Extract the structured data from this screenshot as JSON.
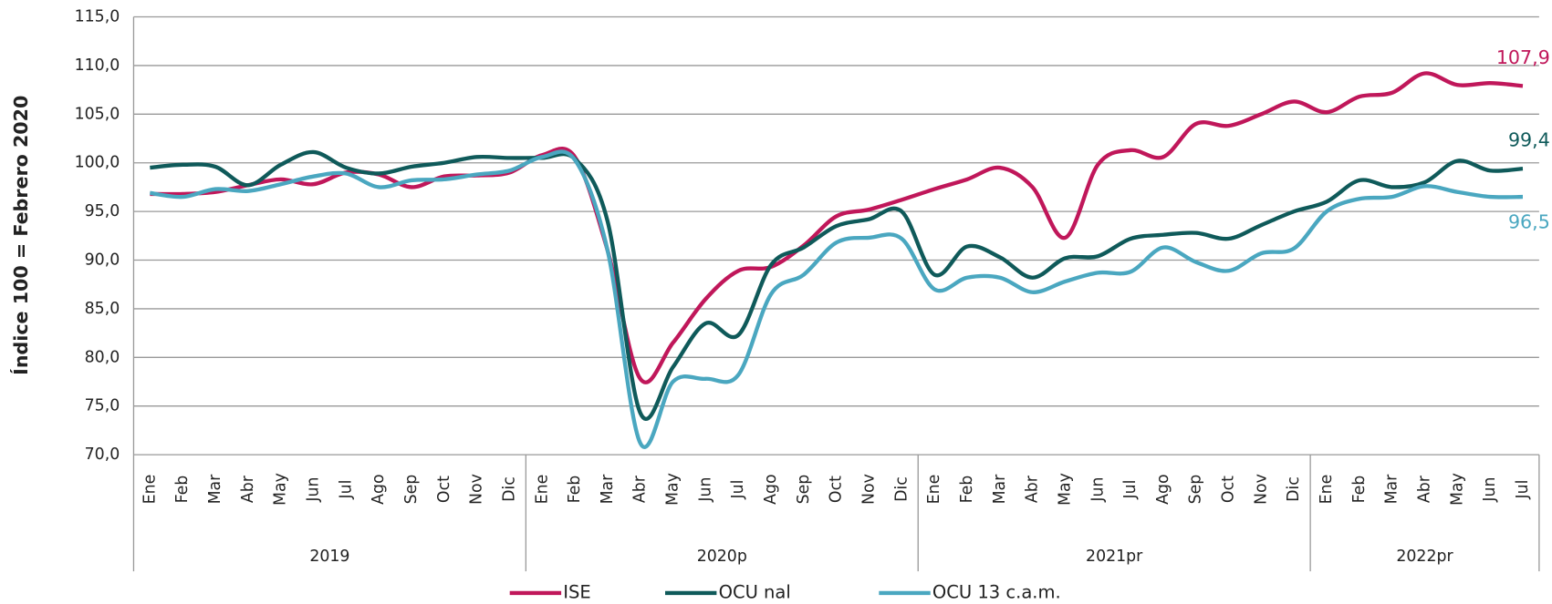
{
  "chart_data": {
    "type": "line",
    "ylabel": "Índice 100 = Febrero 2020",
    "categories": [
      "Ene",
      "Feb",
      "Mar",
      "Abr",
      "May",
      "Jun",
      "Jul",
      "Ago",
      "Sep",
      "Oct",
      "Nov",
      "Dic",
      "Ene",
      "Feb",
      "Mar",
      "Abr",
      "May",
      "Jun",
      "Jul",
      "Ago",
      "Sep",
      "Oct",
      "Nov",
      "Dic",
      "Ene",
      "Feb",
      "Mar",
      "Abr",
      "May",
      "Jun",
      "Jul",
      "Ago",
      "Sep",
      "Oct",
      "Nov",
      "Dic",
      "Ene",
      "Feb",
      "Mar",
      "Abr",
      "May",
      "Jun",
      "Jul"
    ],
    "groups": [
      {
        "label": "2019",
        "count": 12
      },
      {
        "label": "2020p",
        "count": 12
      },
      {
        "label": "2021pr",
        "count": 12
      },
      {
        "label": "2022pr",
        "count": 7
      }
    ],
    "ylim": [
      70,
      115
    ],
    "yticks": [
      {
        "value": 70,
        "label": "70,0"
      },
      {
        "value": 75,
        "label": "75,0"
      },
      {
        "value": 80,
        "label": "80,0"
      },
      {
        "value": 85,
        "label": "85,0"
      },
      {
        "value": 90,
        "label": "90,0"
      },
      {
        "value": 95,
        "label": "95,0"
      },
      {
        "value": 100,
        "label": "100,0"
      },
      {
        "value": 105,
        "label": "105,0"
      },
      {
        "value": 110,
        "label": "110,0"
      },
      {
        "value": 115,
        "label": "115,0"
      }
    ],
    "grid": true,
    "legend": "bottom",
    "series": [
      {
        "name": "ISE",
        "color": "#c0175a",
        "values": [
          96.8,
          96.8,
          97.0,
          97.7,
          98.3,
          97.8,
          99.0,
          98.8,
          97.5,
          98.6,
          98.7,
          99.0,
          100.8,
          100.6,
          91,
          77.8,
          81.5,
          86,
          88.9,
          89.3,
          91.5,
          94.5,
          95.2,
          96.2,
          97.3,
          98.3,
          99.5,
          97.5,
          92.3,
          99.8,
          101.3,
          100.6,
          104.0,
          103.8,
          105.0,
          106.3,
          105.2,
          106.8,
          107.2,
          109.2,
          108.0,
          108.2,
          107.9
        ],
        "value_labels": [
          null,
          null,
          null,
          null,
          null,
          null,
          null,
          null,
          null,
          null,
          null,
          null,
          null,
          null,
          null,
          null,
          null,
          null,
          null,
          null,
          null,
          null,
          null,
          null,
          null,
          null,
          null,
          null,
          null,
          null,
          null,
          null,
          null,
          null,
          null,
          null,
          null,
          null,
          null,
          null,
          null,
          null,
          "107,9"
        ]
      },
      {
        "name": "OCU nal",
        "color": "#0f5a5a",
        "values": [
          99.5,
          99.8,
          99.6,
          97.7,
          99.8,
          101.1,
          99.5,
          98.9,
          99.6,
          100.0,
          100.6,
          100.5,
          100.5,
          100.4,
          94,
          74.3,
          79,
          83.5,
          82.3,
          89.5,
          91.3,
          93.5,
          94.2,
          95.0,
          88.5,
          91.4,
          90.3,
          88.2,
          90.2,
          90.4,
          92.2,
          92.6,
          92.8,
          92.2,
          93.6,
          95.0,
          96.0,
          98.2,
          97.5,
          98.0,
          100.2,
          99.2,
          99.4
        ],
        "value_labels": [
          null,
          null,
          null,
          null,
          null,
          null,
          null,
          null,
          null,
          null,
          null,
          null,
          null,
          null,
          null,
          null,
          null,
          null,
          null,
          null,
          null,
          null,
          null,
          null,
          null,
          null,
          null,
          null,
          null,
          null,
          null,
          null,
          null,
          null,
          null,
          null,
          null,
          null,
          null,
          null,
          null,
          null,
          "99,4"
        ]
      },
      {
        "name": "OCU 13 c.a.m.",
        "color": "#4aa7c0",
        "values": [
          96.9,
          96.5,
          97.3,
          97.1,
          97.8,
          98.6,
          98.9,
          97.5,
          98.2,
          98.3,
          98.8,
          99.2,
          100.6,
          100.3,
          91,
          71.2,
          77.5,
          77.8,
          78.2,
          86.5,
          88.5,
          91.8,
          92.3,
          92.2,
          87,
          88.2,
          88.2,
          86.7,
          87.8,
          88.7,
          88.8,
          91.3,
          89.8,
          88.9,
          90.7,
          91.2,
          95.0,
          96.3,
          96.5,
          97.6,
          97.0,
          96.5,
          96.5
        ],
        "value_labels": [
          null,
          null,
          null,
          null,
          null,
          null,
          null,
          null,
          null,
          null,
          null,
          null,
          null,
          null,
          null,
          null,
          null,
          null,
          null,
          null,
          null,
          null,
          null,
          null,
          null,
          null,
          null,
          null,
          null,
          null,
          null,
          null,
          null,
          null,
          null,
          null,
          null,
          null,
          null,
          null,
          null,
          null,
          "96,5"
        ]
      }
    ]
  }
}
